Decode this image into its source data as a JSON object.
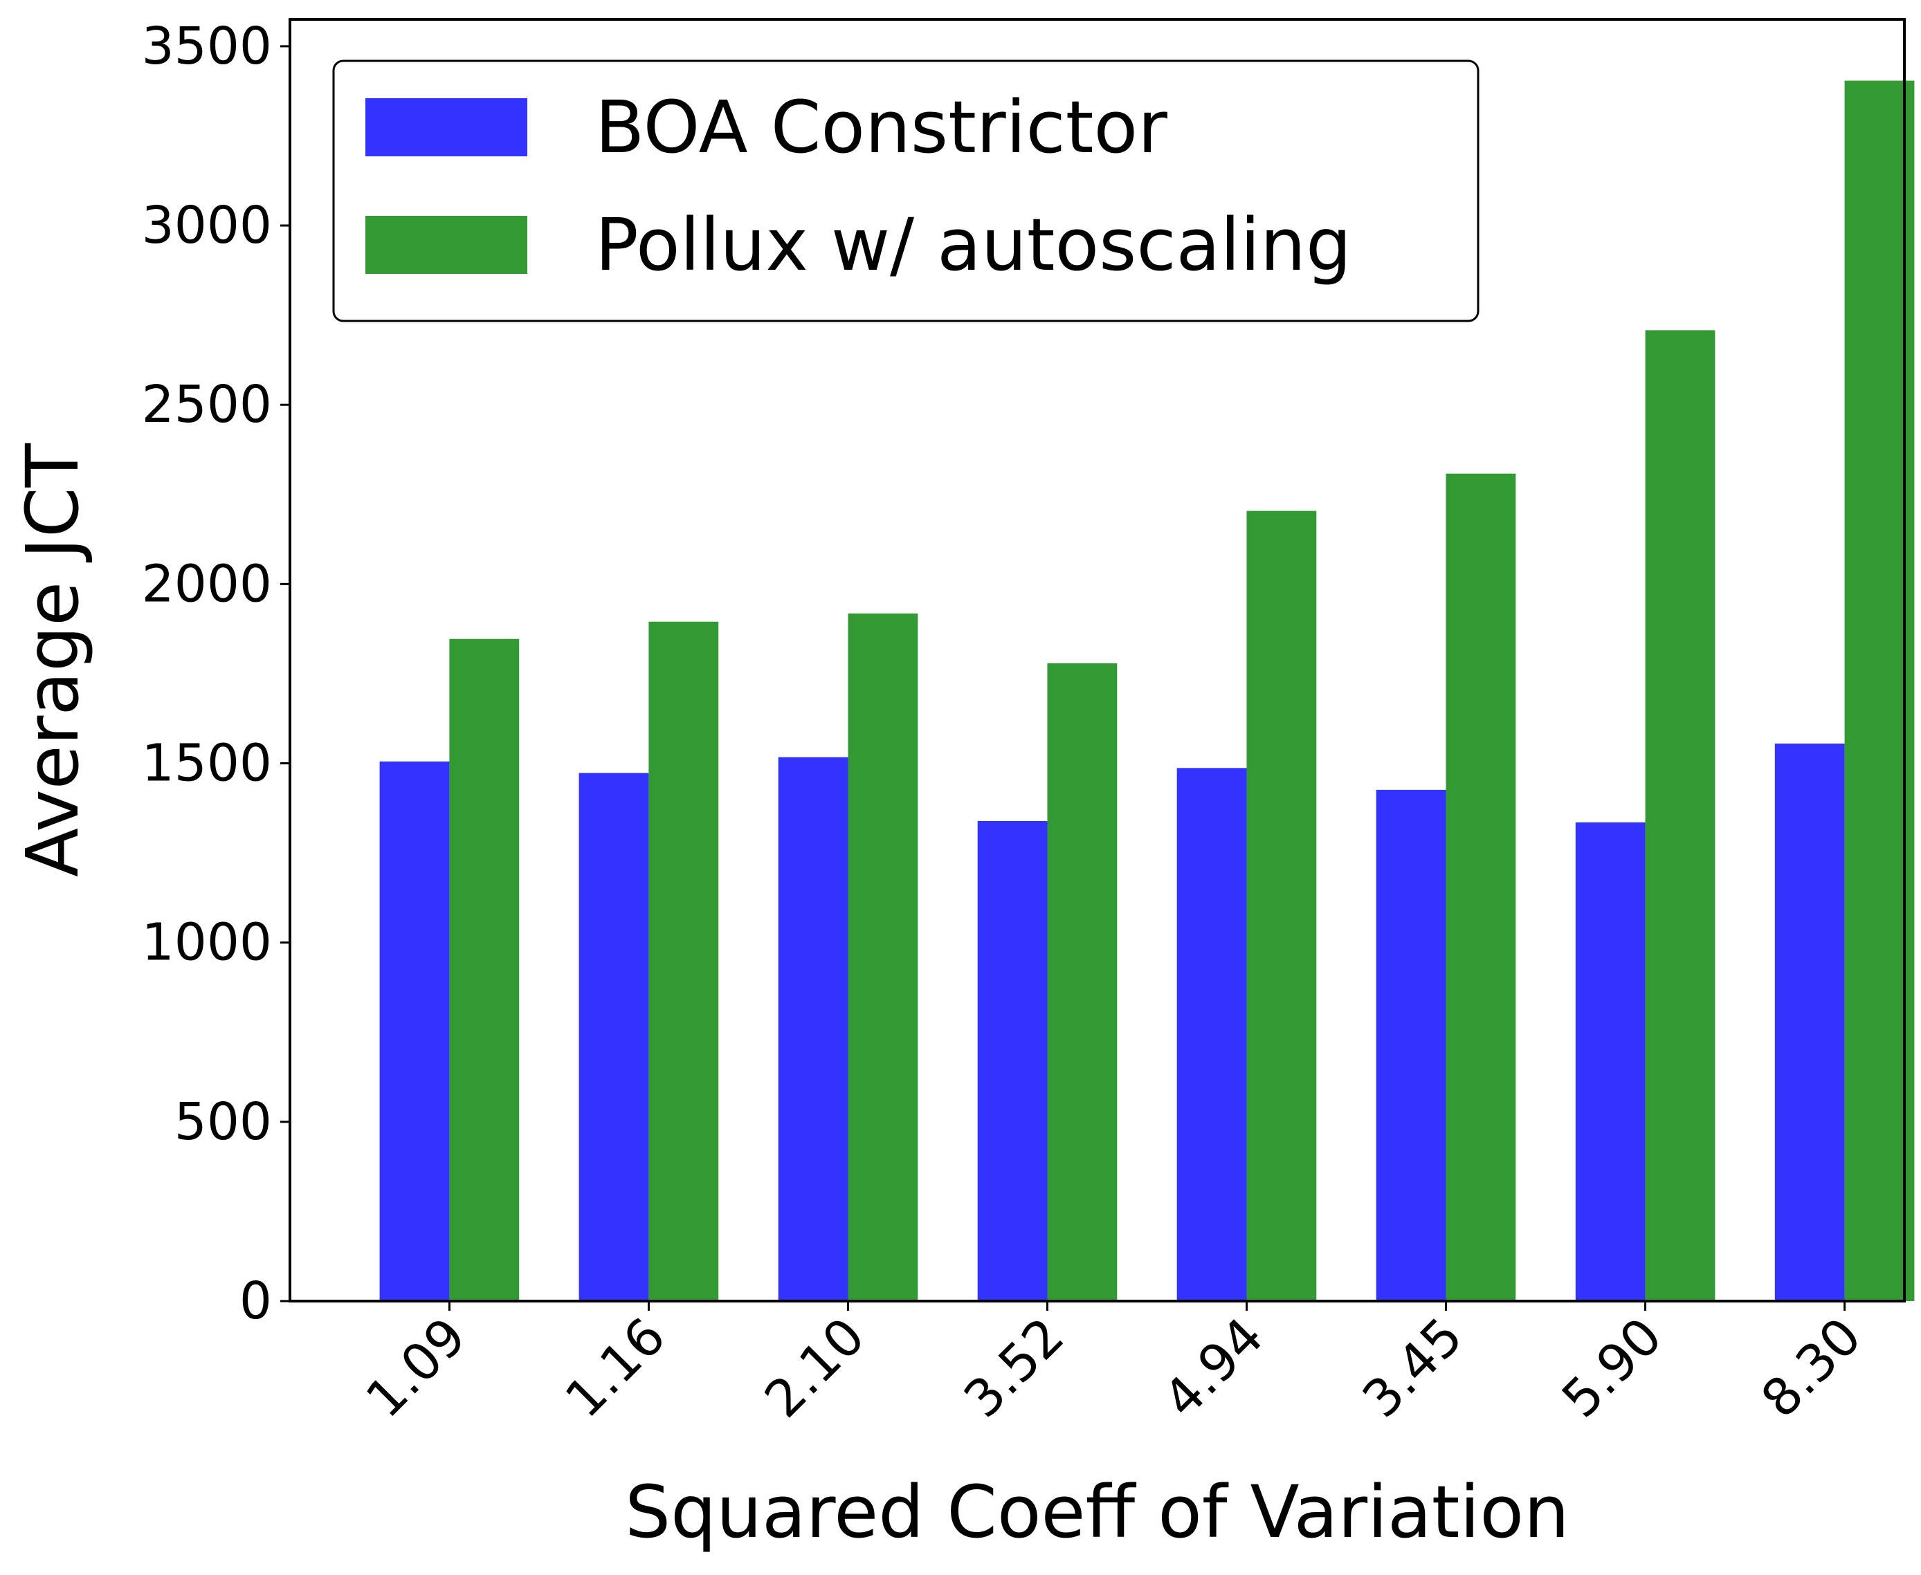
{
  "chart_data": {
    "type": "bar",
    "title": "",
    "xlabel": "Squared Coeff of Variation",
    "ylabel": "Average JCT",
    "categories": [
      "1.09",
      "1.16",
      "2.10",
      "3.52",
      "4.94",
      "3.45",
      "5.90",
      "8.30"
    ],
    "series": [
      {
        "name": "BOA Constrictor",
        "color": "#3333ff",
        "values": [
          1505,
          1473,
          1517,
          1339,
          1487,
          1426,
          1335,
          1555
        ]
      },
      {
        "name": "Pollux w/ autoscaling",
        "color": "#339933",
        "values": [
          1847,
          1895,
          1918,
          1779,
          2204,
          2308,
          2708,
          3404
        ]
      }
    ],
    "yticks": [
      "0",
      "500",
      "1000",
      "1500",
      "2000",
      "2500",
      "3000",
      "3500"
    ],
    "ylim": [
      0,
      3575
    ],
    "grid": false,
    "legend_position": "top-left"
  }
}
